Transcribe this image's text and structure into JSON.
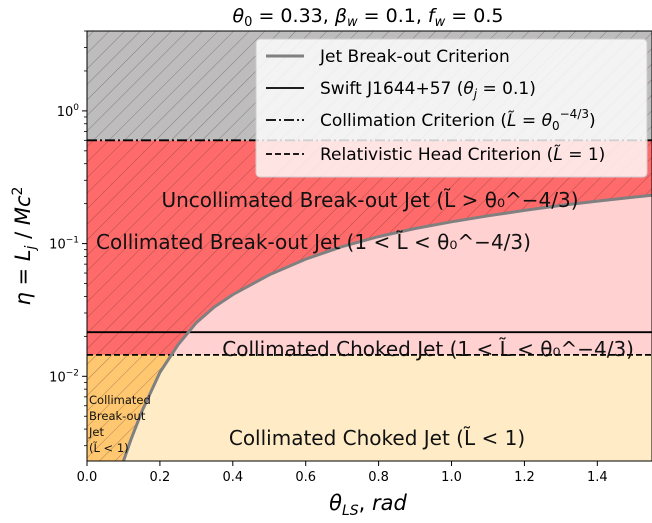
{
  "chart_data": {
    "type": "area",
    "title": "θ₀ = 0.33,  β_w = 0.1,  f_w = 0.5",
    "xlabel": "θ_LS,  rad",
    "ylabel": "η = L_j / Mc²",
    "xlim": [
      0.0,
      1.55
    ],
    "ylim": [
      0.0023,
      4.0
    ],
    "y_scale": "log",
    "grid": false,
    "legend_position": "top-right",
    "x_ticks": [
      "0.0",
      "0.2",
      "0.4",
      "0.6",
      "0.8",
      "1.0",
      "1.2",
      "1.4"
    ],
    "y_ticks": [
      {
        "value": 0.01,
        "base": "10",
        "exp": "−2"
      },
      {
        "value": 0.1,
        "base": "10",
        "exp": "−1"
      },
      {
        "value": 1.0,
        "base": "10",
        "exp": "0"
      }
    ],
    "thresholds": {
      "collimation_criterion": 0.6,
      "relativistic_head": 0.0145,
      "swift_j1644": 0.0215
    },
    "breakout_curve": {
      "name": "Jet Break-out Criterion",
      "x": [
        0.1,
        0.12,
        0.15,
        0.2,
        0.25,
        0.3,
        0.35,
        0.4,
        0.5,
        0.6,
        0.7,
        0.8,
        0.9,
        1.0,
        1.1,
        1.2,
        1.3,
        1.4,
        1.5,
        1.55
      ],
      "y": [
        0.0023,
        0.0033,
        0.0054,
        0.0107,
        0.0173,
        0.0254,
        0.0334,
        0.0413,
        0.0582,
        0.0764,
        0.095,
        0.113,
        0.13,
        0.146,
        0.162,
        0.178,
        0.194,
        0.209,
        0.224,
        0.231
      ]
    },
    "legend": [
      {
        "label": "Jet Break-out Criterion",
        "style": "thick-gray"
      },
      {
        "label": "Swift J1644+57 (θ_j = 0.1)",
        "style": "solid"
      },
      {
        "label": "Collimation Criterion (L̃ = θ₀^−4/3)",
        "style": "dashdot"
      },
      {
        "label": "Relativistic Head Criterion (L̃ = 1)",
        "style": "dashed"
      }
    ],
    "regions": {
      "uncollimated_breakout": "Uncollimated Break-out Jet (L̃ > θ₀^−4/3)",
      "collimated_breakout": "Collimated Break-out Jet (1 < L̃ < θ₀^−4/3)",
      "collimated_choked_upper": "Collimated Choked Jet (1 < L̃ < θ₀^−4/3)",
      "collimated_choked_lower": "Collimated Choked Jet (L̃ < 1)",
      "small_region": [
        "Collimated",
        "Break-out",
        "Jet",
        "(L̃ < 1)"
      ]
    },
    "colors": {
      "uncollimated": "#bdbdbd",
      "collimated_breakout": "#ff6b6b",
      "collimated_choked": "#ffd1d1",
      "choked_lower": "#ffecc6",
      "small_breakout": "#ffc870",
      "breakout_curve": "#808080"
    }
  }
}
